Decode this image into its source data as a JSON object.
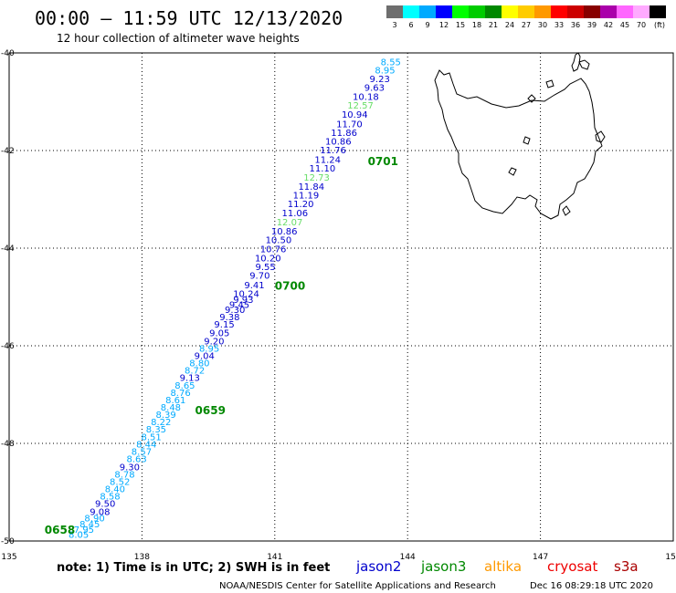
{
  "header": {
    "title": "00:00 – 11:59 UTC 12/13/2020",
    "subtitle": "12 hour collection of altimeter wave heights"
  },
  "scale": {
    "labels": [
      "3",
      "6",
      "9",
      "12",
      "15",
      "18",
      "21",
      "24",
      "27",
      "30",
      "33",
      "36",
      "39",
      "42",
      "45",
      "70",
      "(ft)"
    ],
    "colors": [
      "#6e6e6e",
      "#00ffff",
      "#00aaff",
      "#0000ff",
      "#00ff00",
      "#00cc00",
      "#008800",
      "#ffff00",
      "#ffcc00",
      "#ff9900",
      "#ff0000",
      "#cc0000",
      "#880000",
      "#aa00aa",
      "#ff66ff",
      "#ffaaff",
      "#000000"
    ]
  },
  "axes": {
    "lon_ticks": [
      "135",
      "138",
      "141",
      "144",
      "147",
      "150"
    ],
    "lat_ticks": [
      "-40",
      "-42",
      "-44",
      "-46",
      "-48",
      "-50"
    ],
    "lon_range": [
      135,
      150
    ],
    "lat_range": [
      -40,
      -50
    ]
  },
  "footer": {
    "note": "note: 1) Time is in UTC; 2) SWH is in feet",
    "credit": "NOAA/NESDIS Center for Satellite Applications and Research",
    "timestamp": "Dec 16 08:29:18 UTC 2020"
  },
  "legend": [
    {
      "name": "jason2",
      "color": "#0000cc"
    },
    {
      "name": "jason3",
      "color": "#008800"
    },
    {
      "name": "altika",
      "color": "#ff9900"
    },
    {
      "name": "cryosat",
      "color": "#ee0000"
    },
    {
      "name": "s3a",
      "color": "#aa0000"
    }
  ],
  "time_markers": [
    {
      "text": "0701",
      "lon": 143.1,
      "lat": -42.3
    },
    {
      "text": "0700",
      "lon": 141.0,
      "lat": -44.85
    },
    {
      "text": "0659",
      "lon": 139.2,
      "lat": -47.4
    },
    {
      "text": "0658",
      "lon": 135.8,
      "lat": -49.85
    }
  ],
  "track": [
    {
      "v": "8.55",
      "lon": 143.85,
      "lat": -40.25,
      "c": "#00aaff"
    },
    {
      "v": "8.95",
      "lon": 143.72,
      "lat": -40.42,
      "c": "#00aaff"
    },
    {
      "v": "9.23",
      "lon": 143.6,
      "lat": -40.6,
      "c": "#0000cc"
    },
    {
      "v": "9.63",
      "lon": 143.48,
      "lat": -40.78,
      "c": "#0000cc"
    },
    {
      "v": "10.18",
      "lon": 143.35,
      "lat": -40.96,
      "c": "#0000cc"
    },
    {
      "v": "12.57",
      "lon": 143.23,
      "lat": -41.14,
      "c": "#66dd66"
    },
    {
      "v": "10.94",
      "lon": 143.1,
      "lat": -41.33,
      "c": "#0000cc"
    },
    {
      "v": "11.70",
      "lon": 142.98,
      "lat": -41.52,
      "c": "#0000cc"
    },
    {
      "v": "11.86",
      "lon": 142.86,
      "lat": -41.7,
      "c": "#0000cc"
    },
    {
      "v": "10.86",
      "lon": 142.73,
      "lat": -41.88,
      "c": "#0000cc"
    },
    {
      "v": "11.76",
      "lon": 142.61,
      "lat": -42.06,
      "c": "#0000cc"
    },
    {
      "v": "11.24",
      "lon": 142.49,
      "lat": -42.25,
      "c": "#0000cc"
    },
    {
      "v": "11.10",
      "lon": 142.37,
      "lat": -42.43,
      "c": "#0000cc"
    },
    {
      "v": "12.73",
      "lon": 142.24,
      "lat": -42.62,
      "c": "#66dd66"
    },
    {
      "v": "11.84",
      "lon": 142.12,
      "lat": -42.8,
      "c": "#0000cc"
    },
    {
      "v": "11.19",
      "lon": 142.0,
      "lat": -42.98,
      "c": "#0000cc"
    },
    {
      "v": "11.20",
      "lon": 141.88,
      "lat": -43.16,
      "c": "#0000cc"
    },
    {
      "v": "11.06",
      "lon": 141.75,
      "lat": -43.35,
      "c": "#0000cc"
    },
    {
      "v": "12.07",
      "lon": 141.63,
      "lat": -43.53,
      "c": "#66dd66"
    },
    {
      "v": "10.86",
      "lon": 141.51,
      "lat": -43.72,
      "c": "#0000cc"
    },
    {
      "v": "10.50",
      "lon": 141.38,
      "lat": -43.9,
      "c": "#0000cc"
    },
    {
      "v": "10.76",
      "lon": 141.26,
      "lat": -44.08,
      "c": "#0000cc"
    },
    {
      "v": "10.20",
      "lon": 141.14,
      "lat": -44.27,
      "c": "#0000cc"
    },
    {
      "v": "9.55",
      "lon": 141.02,
      "lat": -44.45,
      "c": "#0000cc"
    },
    {
      "v": "9.70",
      "lon": 140.89,
      "lat": -44.63,
      "c": "#0000cc"
    },
    {
      "v": "9.41",
      "lon": 140.77,
      "lat": -44.82,
      "c": "#0000cc"
    },
    {
      "v": "10.24",
      "lon": 140.65,
      "lat": -45.0,
      "c": "#0000cc"
    },
    {
      "v": "9.93",
      "lon": 140.52,
      "lat": -45.12,
      "c": "#0000cc"
    },
    {
      "v": "9.45",
      "lon": 140.43,
      "lat": -45.22,
      "c": "#0000cc"
    },
    {
      "v": "9.30",
      "lon": 140.33,
      "lat": -45.33,
      "c": "#0000cc"
    },
    {
      "v": "9.38",
      "lon": 140.21,
      "lat": -45.48,
      "c": "#0000cc"
    },
    {
      "v": "9.15",
      "lon": 140.09,
      "lat": -45.63,
      "c": "#0000cc"
    },
    {
      "v": "9.05",
      "lon": 139.98,
      "lat": -45.8,
      "c": "#0000cc"
    },
    {
      "v": "9.20",
      "lon": 139.86,
      "lat": -45.97,
      "c": "#0000cc"
    },
    {
      "v": "8.95",
      "lon": 139.75,
      "lat": -46.12,
      "c": "#00aaff"
    },
    {
      "v": "9.04",
      "lon": 139.64,
      "lat": -46.27,
      "c": "#0000cc"
    },
    {
      "v": "8.80",
      "lon": 139.53,
      "lat": -46.42,
      "c": "#00aaff"
    },
    {
      "v": "8.72",
      "lon": 139.42,
      "lat": -46.57,
      "c": "#00aaff"
    },
    {
      "v": "9.13",
      "lon": 139.31,
      "lat": -46.72,
      "c": "#0000cc"
    },
    {
      "v": "8.65",
      "lon": 139.2,
      "lat": -46.88,
      "c": "#00aaff"
    },
    {
      "v": "8.76",
      "lon": 139.1,
      "lat": -47.03,
      "c": "#00aaff"
    },
    {
      "v": "8.61",
      "lon": 138.99,
      "lat": -47.18,
      "c": "#00aaff"
    },
    {
      "v": "8.48",
      "lon": 138.88,
      "lat": -47.33,
      "c": "#00aaff"
    },
    {
      "v": "8.39",
      "lon": 138.77,
      "lat": -47.48,
      "c": "#00aaff"
    },
    {
      "v": "8.22",
      "lon": 138.66,
      "lat": -47.63,
      "c": "#00aaff"
    },
    {
      "v": "8.35",
      "lon": 138.55,
      "lat": -47.78,
      "c": "#00aaff"
    },
    {
      "v": "8.51",
      "lon": 138.44,
      "lat": -47.93,
      "c": "#00aaff"
    },
    {
      "v": "8.44",
      "lon": 138.33,
      "lat": -48.08,
      "c": "#00aaff"
    },
    {
      "v": "8.57",
      "lon": 138.22,
      "lat": -48.23,
      "c": "#00aaff"
    },
    {
      "v": "8.63",
      "lon": 138.11,
      "lat": -48.38,
      "c": "#00aaff"
    },
    {
      "v": "9.30",
      "lon": 137.95,
      "lat": -48.55,
      "c": "#0000cc"
    },
    {
      "v": "8.78",
      "lon": 137.84,
      "lat": -48.7,
      "c": "#00aaff"
    },
    {
      "v": "8.52",
      "lon": 137.73,
      "lat": -48.85,
      "c": "#00aaff"
    },
    {
      "v": "8.40",
      "lon": 137.62,
      "lat": -49.0,
      "c": "#00aaff"
    },
    {
      "v": "8.58",
      "lon": 137.51,
      "lat": -49.15,
      "c": "#00aaff"
    },
    {
      "v": "9.50",
      "lon": 137.4,
      "lat": -49.3,
      "c": "#0000cc"
    },
    {
      "v": "9.08",
      "lon": 137.28,
      "lat": -49.47,
      "c": "#0000cc"
    },
    {
      "v": "8.90",
      "lon": 137.16,
      "lat": -49.6,
      "c": "#00aaff"
    },
    {
      "v": "8.45",
      "lon": 137.05,
      "lat": -49.72,
      "c": "#00aaff"
    },
    {
      "v": "7.95",
      "lon": 136.92,
      "lat": -49.83,
      "c": "#00aaff"
    },
    {
      "v": "8.05",
      "lon": 136.8,
      "lat": -49.93,
      "c": "#00aaff"
    }
  ]
}
